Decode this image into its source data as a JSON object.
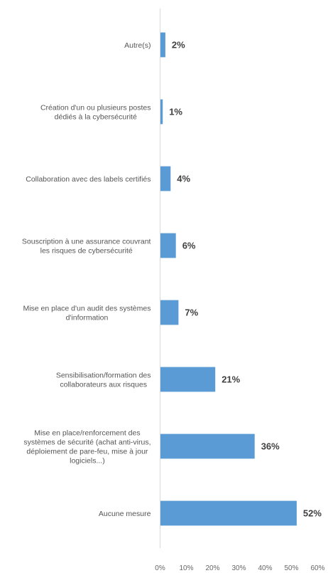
{
  "chart_data": {
    "type": "bar",
    "orientation": "horizontal",
    "categories": [
      [
        "Autre(s)"
      ],
      [
        "Création d'un ou plusieurs postes",
        "dédiés à la cybersécurité"
      ],
      [
        "Collaboration avec des labels certifiés"
      ],
      [
        "Souscription à une assurance couvrant",
        "les risques de cybersécurité"
      ],
      [
        "Mise en place d'un audit des systèmes",
        "d'information"
      ],
      [
        "Sensibilisation/formation des",
        "collaborateurs aux risques"
      ],
      [
        "Mise en place/renforcement des",
        "systèmes de sécurité (achat anti-virus,",
        "déploiement de pare-feu, mise à jour",
        "logiciels...)"
      ],
      [
        "Aucune mesure"
      ]
    ],
    "values": [
      2,
      1,
      4,
      6,
      7,
      21,
      36,
      52
    ],
    "value_labels": [
      "2%",
      "1%",
      "4%",
      "6%",
      "7%",
      "21%",
      "36%",
      "52%"
    ],
    "xlim": [
      0,
      60
    ],
    "xticks": [
      0,
      10,
      20,
      30,
      40,
      50,
      60
    ],
    "xtick_labels": [
      "0%",
      "10%",
      "20%",
      "30%",
      "40%",
      "50%",
      "60%"
    ],
    "title": "",
    "xlabel": "",
    "ylabel": "",
    "grid": false,
    "legend": "none",
    "bar_color": "#5b9bd5",
    "axis_color": "#d9d9d9"
  }
}
